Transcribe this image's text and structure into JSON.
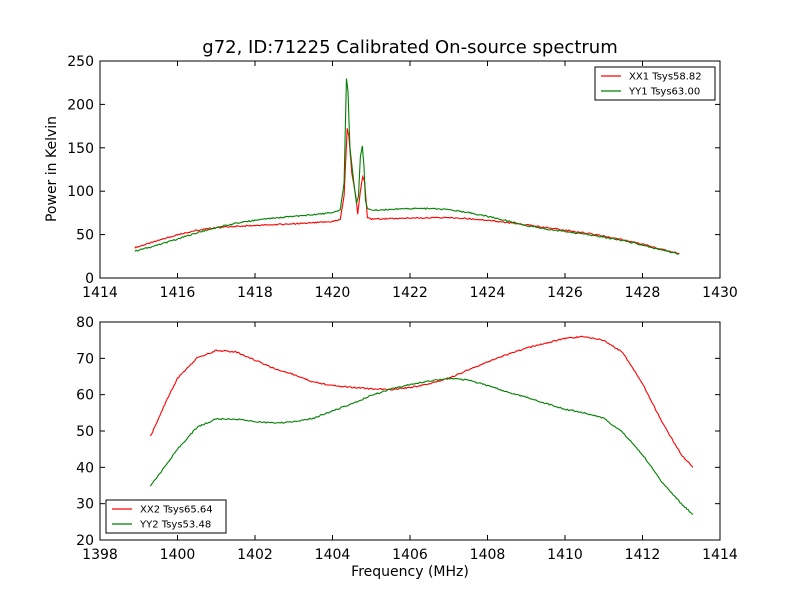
{
  "title": "g72, ID:71225 Calibrated On-source spectrum",
  "chart_data": [
    {
      "type": "line",
      "ylabel": "Power in Kelvin",
      "xlabel": "",
      "xlim": [
        1414,
        1430
      ],
      "ylim": [
        0,
        250
      ],
      "xticks": [
        1414,
        1416,
        1418,
        1420,
        1422,
        1424,
        1426,
        1428,
        1430
      ],
      "yticks": [
        0,
        50,
        100,
        150,
        200,
        250
      ],
      "grid": false,
      "legend": "top-right",
      "series": [
        {
          "name": "XX1 Tsys58.82",
          "color": "#ff0000",
          "x": [
            1414.9,
            1415.5,
            1416.0,
            1416.5,
            1417.0,
            1417.5,
            1418.0,
            1418.5,
            1419.0,
            1419.5,
            1420.0,
            1420.2,
            1420.3,
            1420.38,
            1420.42,
            1420.5,
            1420.6,
            1420.65,
            1420.72,
            1420.78,
            1420.83,
            1420.9,
            1421.0,
            1421.5,
            1422.0,
            1422.5,
            1423.0,
            1423.5,
            1424.0,
            1424.5,
            1425.0,
            1425.5,
            1426.0,
            1426.5,
            1427.0,
            1427.5,
            1428.0,
            1428.5,
            1428.95
          ],
          "y": [
            35,
            43,
            50,
            55,
            58,
            59.5,
            60.5,
            61.5,
            62.5,
            63.5,
            65,
            67,
            95,
            172,
            165,
            120,
            95,
            73,
            100,
            117,
            110,
            70,
            68,
            68.5,
            69,
            69.5,
            69.5,
            68.5,
            66.5,
            64,
            61,
            58.5,
            55,
            52,
            48.5,
            44,
            39,
            33,
            28
          ]
        },
        {
          "name": "YY1 Tsys63.00",
          "color": "#008000",
          "x": [
            1414.9,
            1415.5,
            1416.0,
            1416.5,
            1417.0,
            1417.5,
            1418.0,
            1418.5,
            1419.0,
            1419.5,
            1420.0,
            1420.2,
            1420.3,
            1420.36,
            1420.4,
            1420.45,
            1420.55,
            1420.62,
            1420.67,
            1420.72,
            1420.77,
            1420.81,
            1420.85,
            1420.9,
            1421.0,
            1421.5,
            1422.0,
            1422.5,
            1423.0,
            1423.5,
            1424.0,
            1424.5,
            1425.0,
            1425.5,
            1426.0,
            1426.5,
            1427.0,
            1427.5,
            1428.0,
            1428.5,
            1428.95
          ],
          "y": [
            31,
            38,
            45,
            52,
            58,
            63,
            66.5,
            69,
            71,
            73,
            75,
            78,
            110,
            230,
            215,
            150,
            110,
            86,
            95,
            140,
            152,
            130,
            90,
            80,
            78,
            79,
            80,
            80,
            78.5,
            75.5,
            71,
            66,
            60.5,
            56.5,
            53.5,
            50.5,
            47,
            43,
            38,
            32.5,
            27.5
          ]
        }
      ]
    },
    {
      "type": "line",
      "xlabel": "Frequency (MHz)",
      "ylabel": "",
      "xlim": [
        1398,
        1414
      ],
      "ylim": [
        20,
        80
      ],
      "xticks": [
        1398,
        1400,
        1402,
        1404,
        1406,
        1408,
        1410,
        1412,
        1414
      ],
      "yticks": [
        20,
        30,
        40,
        50,
        60,
        70,
        80
      ],
      "grid": false,
      "legend": "bottom-left",
      "series": [
        {
          "name": "XX2 Tsys65.64",
          "color": "#ff0000",
          "x": [
            1399.3,
            1399.7,
            1400.0,
            1400.5,
            1401.0,
            1401.5,
            1402.0,
            1402.5,
            1403.0,
            1403.5,
            1404.0,
            1404.5,
            1405.0,
            1405.5,
            1406.0,
            1406.5,
            1407.0,
            1407.5,
            1408.0,
            1408.5,
            1409.0,
            1409.5,
            1410.0,
            1410.5,
            1411.0,
            1411.5,
            1412.0,
            1412.5,
            1413.0,
            1413.3
          ],
          "y": [
            48.5,
            58,
            64.5,
            70,
            72.2,
            71.8,
            69.5,
            67.2,
            65.5,
            63.5,
            62.5,
            62,
            61.6,
            61.4,
            62,
            63,
            64.5,
            66.8,
            69,
            71,
            72.8,
            74.2,
            75.5,
            76,
            75,
            71.5,
            63,
            52.5,
            43.5,
            40
          ]
        },
        {
          "name": "YY2 Tsys53.48",
          "color": "#008000",
          "x": [
            1399.3,
            1399.7,
            1400.0,
            1400.5,
            1401.0,
            1401.5,
            1402.0,
            1402.5,
            1403.0,
            1403.5,
            1404.0,
            1404.5,
            1405.0,
            1405.5,
            1406.0,
            1406.5,
            1407.0,
            1407.5,
            1408.0,
            1408.5,
            1409.0,
            1409.5,
            1410.0,
            1410.5,
            1411.0,
            1411.5,
            1412.0,
            1412.5,
            1413.0,
            1413.3
          ],
          "y": [
            34.8,
            40.5,
            45,
            51,
            53.3,
            53.3,
            52.6,
            52.2,
            52.5,
            53.5,
            55.5,
            57.5,
            59.8,
            61.5,
            62.8,
            63.8,
            64.5,
            64,
            62.5,
            60.8,
            59.3,
            57.6,
            56,
            55,
            53.5,
            49.5,
            43.5,
            36,
            30,
            27
          ]
        }
      ]
    }
  ]
}
